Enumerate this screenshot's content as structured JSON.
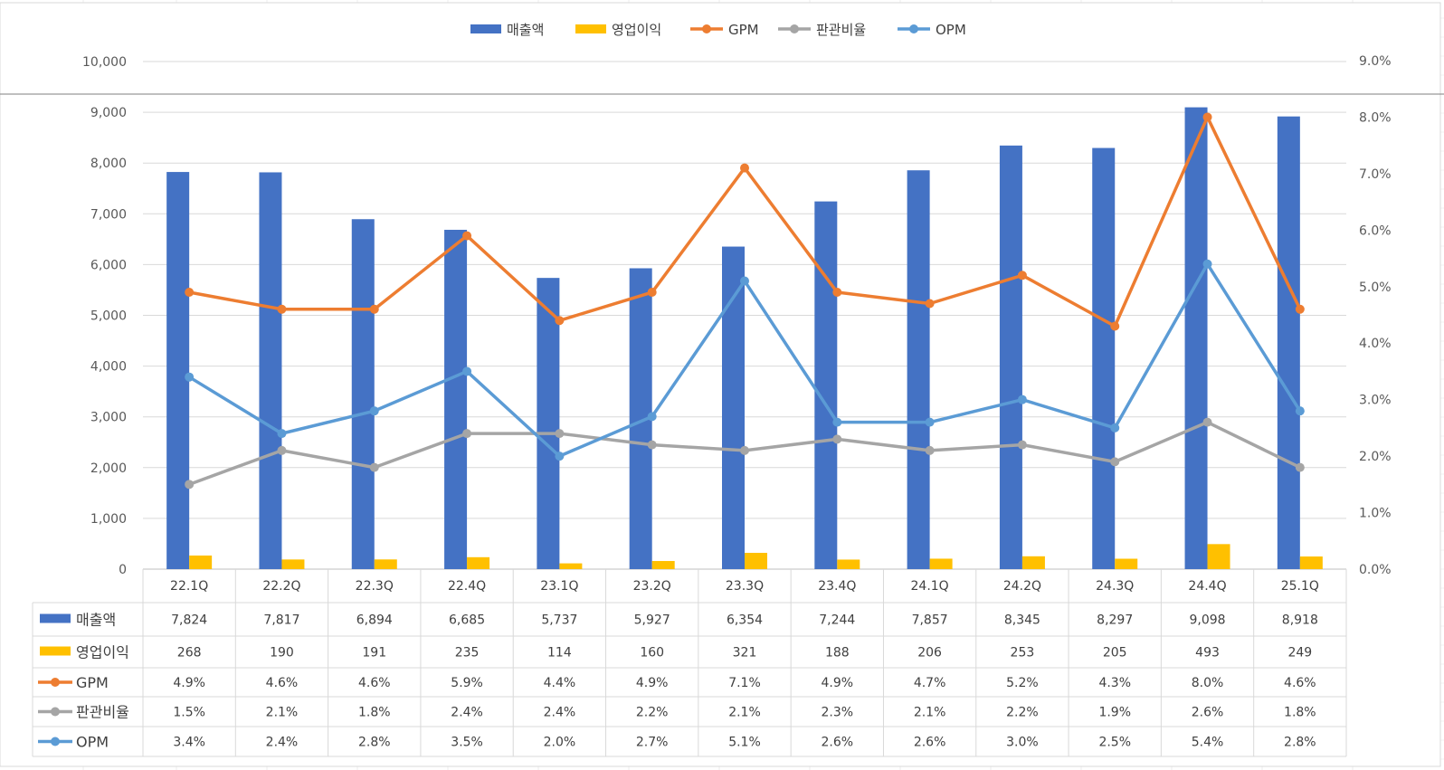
{
  "chart_data": {
    "type": "bar",
    "categories": [
      "22.1Q",
      "22.2Q",
      "22.3Q",
      "22.4Q",
      "23.1Q",
      "23.2Q",
      "23.3Q",
      "23.4Q",
      "24.1Q",
      "24.2Q",
      "24.3Q",
      "24.4Q",
      "25.1Q"
    ],
    "series": [
      {
        "name": "매출액",
        "kind": "bar",
        "axis": "left",
        "color": "#4472C4",
        "values": [
          7824,
          7817,
          6894,
          6685,
          5737,
          5927,
          6354,
          7244,
          7857,
          8345,
          8297,
          9098,
          8918
        ],
        "labels": [
          "7,824",
          "7,817",
          "6,894",
          "6,685",
          "5,737",
          "5,927",
          "6,354",
          "7,244",
          "7,857",
          "8,345",
          "8,297",
          "9,098",
          "8,918"
        ]
      },
      {
        "name": "영업이익",
        "kind": "bar",
        "axis": "left",
        "color": "#FFC000",
        "values": [
          268,
          190,
          191,
          235,
          114,
          160,
          321,
          188,
          206,
          253,
          205,
          493,
          249
        ],
        "labels": [
          "268",
          "190",
          "191",
          "235",
          "114",
          "160",
          "321",
          "188",
          "206",
          "253",
          "205",
          "493",
          "249"
        ]
      },
      {
        "name": "GPM",
        "kind": "line",
        "axis": "right",
        "color": "#ED7D31",
        "values": [
          4.9,
          4.6,
          4.6,
          5.9,
          4.4,
          4.9,
          7.1,
          4.9,
          4.7,
          5.2,
          4.3,
          8.0,
          4.6
        ],
        "labels": [
          "4.9%",
          "4.6%",
          "4.6%",
          "5.9%",
          "4.4%",
          "4.9%",
          "7.1%",
          "4.9%",
          "4.7%",
          "5.2%",
          "4.3%",
          "8.0%",
          "4.6%"
        ]
      },
      {
        "name": "판관비율",
        "kind": "line",
        "axis": "right",
        "color": "#A5A5A5",
        "values": [
          1.5,
          2.1,
          1.8,
          2.4,
          2.4,
          2.2,
          2.1,
          2.3,
          2.1,
          2.2,
          1.9,
          2.6,
          1.8
        ],
        "labels": [
          "1.5%",
          "2.1%",
          "1.8%",
          "2.4%",
          "2.4%",
          "2.2%",
          "2.1%",
          "2.3%",
          "2.1%",
          "2.2%",
          "1.9%",
          "2.6%",
          "1.8%"
        ]
      },
      {
        "name": "OPM",
        "kind": "line",
        "axis": "right",
        "color": "#5B9BD5",
        "values": [
          3.4,
          2.4,
          2.8,
          3.5,
          2.0,
          2.7,
          5.1,
          2.6,
          2.6,
          3.0,
          2.5,
          5.4,
          2.8
        ],
        "labels": [
          "3.4%",
          "2.4%",
          "2.8%",
          "3.5%",
          "2.0%",
          "2.7%",
          "5.1%",
          "2.6%",
          "2.6%",
          "3.0%",
          "2.5%",
          "5.4%",
          "2.8%"
        ]
      }
    ],
    "yleft": {
      "lim": [
        0,
        10000
      ],
      "ticks": [
        "0",
        "1,000",
        "2,000",
        "3,000",
        "4,000",
        "5,000",
        "6,000",
        "7,000",
        "8,000",
        "9,000",
        "10,000"
      ]
    },
    "yright": {
      "lim": [
        0,
        9
      ],
      "ticks": [
        "0.0%",
        "1.0%",
        "2.0%",
        "3.0%",
        "4.0%",
        "5.0%",
        "6.0%",
        "7.0%",
        "8.0%",
        "9.0%"
      ]
    },
    "legend": "top",
    "grid": true,
    "data_table": true
  }
}
